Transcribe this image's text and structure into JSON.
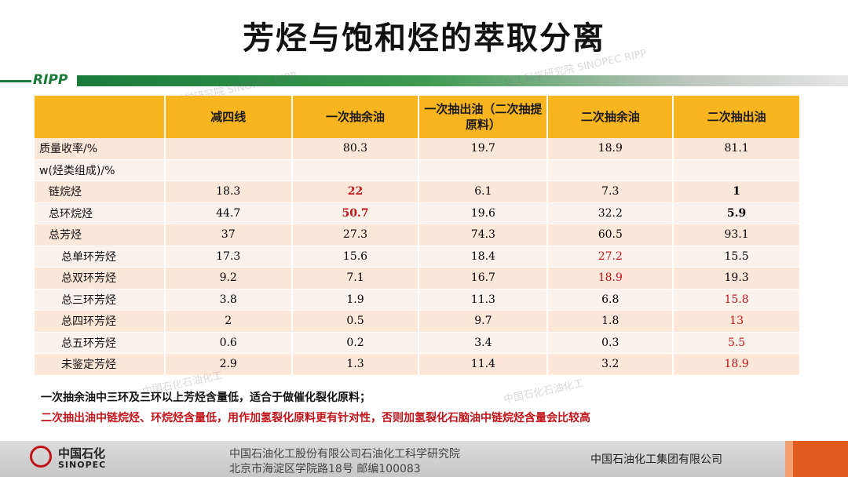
{
  "title": "芳烃与饱和烃的萃取分离",
  "header": {
    "logo": "RIPP",
    "watermark1": "科学研究院 SINOPEC RIPP",
    "watermark2": "化工科学研究院 SINOPEC RIPP"
  },
  "table": {
    "columns": [
      "",
      "减四线",
      "一次抽余油",
      "一次抽出油（二次抽提原料）",
      "二次抽余油",
      "二次抽出油"
    ],
    "rows": [
      {
        "label": "质量收率/%",
        "values": [
          "",
          "80.3",
          "19.7",
          "18.9",
          "81.1"
        ]
      },
      {
        "label": "w(烃类组成)/%",
        "values": [
          "",
          "",
          "",
          "",
          ""
        ]
      },
      {
        "label": "链烷烃",
        "values": [
          "18.3",
          "22",
          "6.1",
          "7.3",
          "1"
        ]
      },
      {
        "label": "总环烷烃",
        "values": [
          "44.7",
          "50.7",
          "19.6",
          "32.2",
          "5.9"
        ]
      },
      {
        "label": "总芳烃",
        "values": [
          "37",
          "27.3",
          "74.3",
          "60.5",
          "93.1"
        ]
      },
      {
        "label": "总单环芳烃",
        "values": [
          "17.3",
          "15.6",
          "18.4",
          "27.2",
          "15.5"
        ]
      },
      {
        "label": "总双环芳烃",
        "values": [
          "9.2",
          "7.1",
          "16.7",
          "18.9",
          "19.3"
        ]
      },
      {
        "label": "总三环芳烃",
        "values": [
          "3.8",
          "1.9",
          "11.3",
          "6.8",
          "15.8"
        ]
      },
      {
        "label": "总四环芳烃",
        "values": [
          "2",
          "0.5",
          "9.7",
          "1.8",
          "13"
        ]
      },
      {
        "label": "总五环芳烃",
        "values": [
          "0.6",
          "0.2",
          "3.4",
          "0.3",
          "5.5"
        ]
      },
      {
        "label": "未鉴定芳烃",
        "values": [
          "2.9",
          "1.3",
          "11.4",
          "3.2",
          "18.9"
        ]
      }
    ]
  },
  "notes": {
    "line1": "一次抽余油中三环及三环以上芳烃含量低，适合于做催化裂化原料；",
    "line2": "二次抽出油中链烷烃、环烷烃含量低，用作加氢裂化原料更有针对性，否则加氢裂化石脑油中链烷烃含量会比较高"
  },
  "watermarks": {
    "mid": "中国石化石油化工",
    "mid2": "中国石化石油化工"
  },
  "footer": {
    "logo_cn": "中国石化",
    "logo_en": "SINOPEC",
    "address1": "中国石油化工股份有限公司石油化工科学研究院",
    "address2": "北京市海淀区学院路18号   邮编100083",
    "group": "中国石油化工集团有限公司"
  },
  "colors": {
    "header_fill": "#f9b51f",
    "row_odd": "#fde7d9",
    "row_even": "#fcf2ec",
    "highlight_red": "#c0141a",
    "brand_green": "#1a7a3a"
  }
}
